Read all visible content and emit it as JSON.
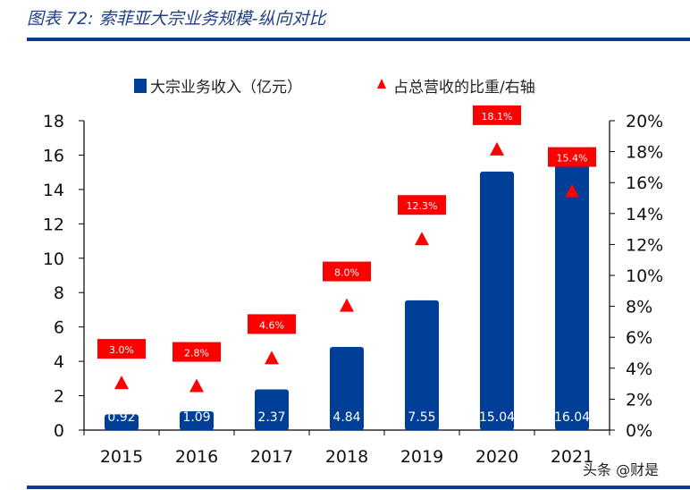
{
  "header": {
    "title": "图表 72:  索菲亚大宗业务规模-纵向对比"
  },
  "watermark": "头条 @财是",
  "chart_data": {
    "type": "bar",
    "categories": [
      "2015",
      "2016",
      "2017",
      "2018",
      "2019",
      "2020",
      "2021"
    ],
    "series": [
      {
        "name": "大宗业务收入（亿元）",
        "kind": "bar",
        "axis": "left",
        "color": "#003f98",
        "values": [
          0.92,
          1.09,
          2.37,
          4.84,
          7.55,
          15.04,
          16.04
        ],
        "labels": [
          "0.92",
          "1.09",
          "2.37",
          "4.84",
          "7.55",
          "15.04",
          "16.04"
        ]
      },
      {
        "name": "占总营收的比重/右轴",
        "kind": "marker-triangle",
        "axis": "right",
        "color": "#ff0000",
        "values": [
          3.0,
          2.8,
          4.6,
          8.0,
          12.3,
          18.1,
          15.4
        ],
        "labels": [
          "3.0%",
          "2.8%",
          "4.6%",
          "8.0%",
          "12.3%",
          "18.1%",
          "15.4%"
        ]
      }
    ],
    "y_left": {
      "range": [
        0,
        18
      ],
      "ticks": [
        "0",
        "2",
        "4",
        "6",
        "8",
        "10",
        "12",
        "14",
        "16",
        "18"
      ]
    },
    "y_right": {
      "range": [
        0,
        20
      ],
      "unit": "%",
      "ticks": [
        "0%",
        "2%",
        "4%",
        "6%",
        "8%",
        "10%",
        "12%",
        "14%",
        "16%",
        "18%",
        "20%"
      ]
    },
    "legend": "top",
    "grid": false
  }
}
